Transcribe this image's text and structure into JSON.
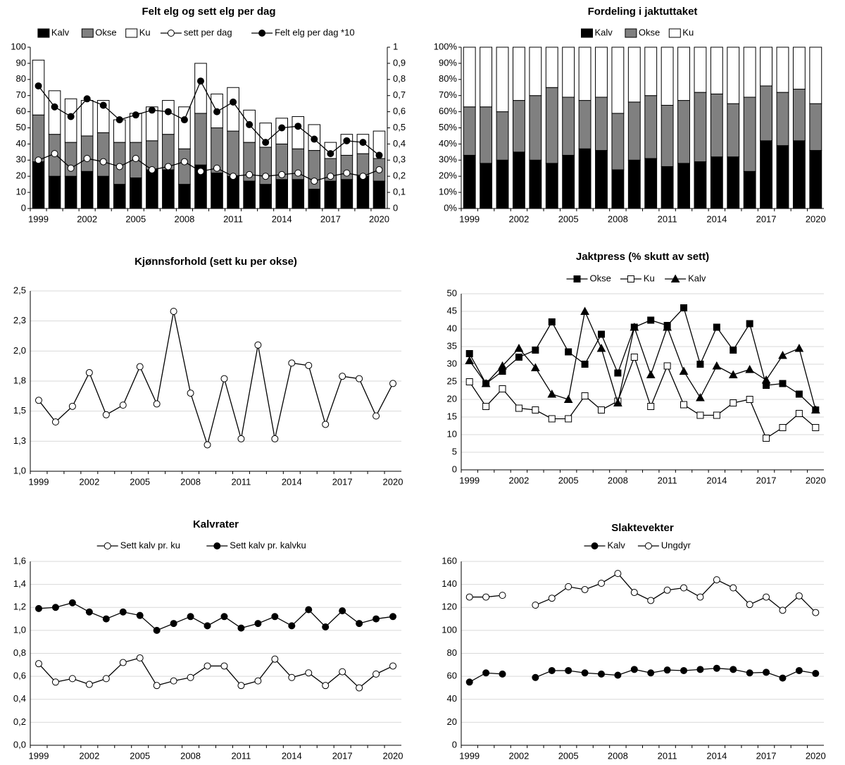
{
  "chart_data": [
    {
      "type": "bar",
      "title": "Felt elg og sett elg per dag",
      "stacked": true,
      "grid": false,
      "categories": [
        1999,
        null,
        null,
        2002,
        null,
        null,
        2005,
        null,
        null,
        2008,
        null,
        null,
        2011,
        null,
        null,
        2014,
        null,
        null,
        2017,
        null,
        null,
        2020
      ],
      "ylim": [
        0,
        100
      ],
      "yticks": [
        0,
        10,
        20,
        30,
        40,
        50,
        60,
        70,
        80,
        90,
        100
      ],
      "y2lim": [
        0,
        1
      ],
      "y2ticks": [
        0,
        {
          "value": 0.1,
          "label": "0,1"
        },
        {
          "value": 0.2,
          "label": "0,2"
        },
        {
          "value": 0.3,
          "label": "0,3"
        },
        {
          "value": 0.4,
          "label": "0,4"
        },
        {
          "value": 0.5,
          "label": "0,5"
        },
        {
          "value": 0.6,
          "label": "0,6"
        },
        {
          "value": 0.7,
          "label": "0,7"
        },
        {
          "value": 0.8,
          "label": "0,8"
        },
        {
          "value": 0.9,
          "label": "0,9"
        },
        1
      ],
      "series": [
        {
          "name": "Kalv",
          "color": "#000000",
          "values": [
            29,
            20,
            20,
            23,
            20,
            15,
            19,
            24,
            24,
            15,
            27,
            22,
            20,
            17,
            15,
            18,
            18,
            12,
            17,
            18,
            20,
            17
          ]
        },
        {
          "name": "Okse",
          "color": "#808080",
          "values": [
            29,
            26,
            21,
            22,
            27,
            26,
            22,
            18,
            22,
            22,
            32,
            28,
            28,
            24,
            23,
            22,
            19,
            24,
            14,
            15,
            14,
            14
          ]
        },
        {
          "name": "Ku",
          "color": "#ffffff",
          "values": [
            34,
            27,
            27,
            22,
            20,
            14,
            18,
            21,
            21,
            26,
            31,
            21,
            27,
            20,
            15,
            16,
            20,
            16,
            10,
            13,
            12,
            17
          ]
        },
        {
          "name": "sett per dag",
          "type": "line",
          "axis": "y2",
          "marker": "circle",
          "color": "#000000",
          "fill": "#ffffff",
          "values": [
            0.3,
            0.34,
            0.25,
            0.31,
            0.29,
            0.26,
            0.31,
            0.24,
            0.26,
            0.29,
            0.23,
            0.25,
            0.2,
            0.21,
            0.2,
            0.21,
            0.22,
            0.17,
            0.2,
            0.22,
            0.2,
            0.24
          ]
        },
        {
          "name": "Felt elg per dag *10",
          "type": "line",
          "axis": "y2",
          "marker": "circle",
          "color": "#000000",
          "fill": "#000000",
          "values": [
            0.76,
            0.63,
            0.57,
            0.68,
            0.64,
            0.55,
            0.58,
            0.61,
            0.6,
            0.55,
            0.79,
            0.6,
            0.66,
            0.52,
            0.41,
            0.5,
            0.51,
            0.43,
            0.34,
            0.42,
            0.41,
            0.33
          ]
        }
      ]
    },
    {
      "type": "bar",
      "title": "Fordeling i jaktuttaket",
      "stacked": true,
      "grid": false,
      "categories": [
        1999,
        null,
        null,
        2002,
        null,
        null,
        2005,
        null,
        null,
        2008,
        null,
        null,
        2011,
        null,
        null,
        2014,
        null,
        null,
        2017,
        null,
        null,
        2020
      ],
      "ylim": [
        0,
        100
      ],
      "yticks": [
        {
          "value": 0,
          "label": "0%"
        },
        {
          "value": 10,
          "label": "10%"
        },
        {
          "value": 20,
          "label": "20%"
        },
        {
          "value": 30,
          "label": "30%"
        },
        {
          "value": 40,
          "label": "40%"
        },
        {
          "value": 50,
          "label": "50%"
        },
        {
          "value": 60,
          "label": "60%"
        },
        {
          "value": 70,
          "label": "70%"
        },
        {
          "value": 80,
          "label": "80%"
        },
        {
          "value": 90,
          "label": "90%"
        },
        {
          "value": 100,
          "label": "100%"
        }
      ],
      "series": [
        {
          "name": "Kalv",
          "color": "#000000",
          "values": [
            33,
            28,
            30,
            35,
            30,
            28,
            33,
            37,
            36,
            24,
            30,
            31,
            26,
            28,
            29,
            32,
            32,
            23,
            42,
            39,
            42,
            36
          ]
        },
        {
          "name": "Okse",
          "color": "#808080",
          "values": [
            30,
            35,
            30,
            32,
            40,
            47,
            36,
            30,
            33,
            35,
            36,
            39,
            38,
            39,
            43,
            39,
            33,
            46,
            34,
            33,
            32,
            29
          ]
        },
        {
          "name": "Ku",
          "color": "#ffffff",
          "values": [
            37,
            37,
            40,
            33,
            30,
            25,
            31,
            33,
            31,
            41,
            34,
            30,
            36,
            33,
            28,
            29,
            35,
            31,
            24,
            28,
            26,
            35
          ]
        }
      ]
    },
    {
      "type": "line",
      "title": "Kjønnsforhold (sett ku per okse)",
      "grid": true,
      "categories": [
        1999,
        null,
        null,
        2002,
        null,
        null,
        2005,
        null,
        null,
        2008,
        null,
        null,
        2011,
        null,
        null,
        2014,
        null,
        null,
        2017,
        null,
        null,
        2020
      ],
      "ylim": [
        1,
        2.5
      ],
      "yticks": [
        {
          "value": 1,
          "label": "1,0"
        },
        {
          "value": 1.25,
          "label": "1,3"
        },
        {
          "value": 1.5,
          "label": "1,5"
        },
        {
          "value": 1.75,
          "label": "1,8"
        },
        {
          "value": 2,
          "label": "2,0"
        },
        {
          "value": 2.25,
          "label": "2,3"
        },
        {
          "value": 2.5,
          "label": "2,5"
        }
      ],
      "series": [
        {
          "marker": "circle",
          "color": "#000000",
          "fill": "#ffffff",
          "values": [
            1.59,
            1.41,
            1.54,
            1.82,
            1.47,
            1.55,
            1.87,
            1.56,
            2.33,
            1.65,
            1.22,
            1.77,
            1.27,
            2.05,
            1.27,
            1.9,
            1.88,
            1.39,
            1.79,
            1.77,
            1.46,
            1.73
          ]
        }
      ]
    },
    {
      "type": "line",
      "title": "Jaktpress (% skutt av sett)",
      "grid": true,
      "categories": [
        1999,
        null,
        null,
        2002,
        null,
        null,
        2005,
        null,
        null,
        2008,
        null,
        null,
        2011,
        null,
        null,
        2014,
        null,
        null,
        2017,
        null,
        null,
        2020
      ],
      "ylim": [
        0,
        50
      ],
      "yticks": [
        0,
        5,
        10,
        15,
        20,
        25,
        30,
        35,
        40,
        45,
        50
      ],
      "series": [
        {
          "name": "Okse",
          "marker": "square",
          "color": "#000000",
          "fill": "#000000",
          "values": [
            33,
            24.5,
            28,
            32,
            34,
            42,
            33.5,
            30,
            38.5,
            27.5,
            40.5,
            42.5,
            41,
            46,
            30,
            40.5,
            34,
            41.5,
            24,
            24.5,
            21.5,
            17
          ]
        },
        {
          "name": "Ku",
          "marker": "square",
          "color": "#000000",
          "fill": "#ffffff",
          "values": [
            25,
            18,
            23,
            17.5,
            17,
            14.5,
            14.5,
            21,
            17,
            19.5,
            32,
            18,
            29.5,
            18.5,
            15.5,
            15.5,
            19,
            20,
            9,
            12,
            16,
            12
          ]
        },
        {
          "name": "Kalv",
          "marker": "triangle",
          "color": "#000000",
          "fill": "#000000",
          "values": [
            31,
            24.5,
            29.5,
            34.5,
            29,
            21.5,
            20,
            45,
            34.5,
            19,
            40.5,
            27,
            40.5,
            28,
            20.5,
            29.5,
            27,
            28.5,
            25.5,
            32.5,
            34.5,
            17
          ]
        }
      ]
    },
    {
      "type": "line",
      "title": "Kalvrater",
      "grid": true,
      "categories": [
        1999,
        null,
        null,
        2002,
        null,
        null,
        2005,
        null,
        null,
        2008,
        null,
        null,
        2011,
        null,
        null,
        2014,
        null,
        null,
        2017,
        null,
        null,
        2020
      ],
      "ylim": [
        0,
        1.6
      ],
      "yticks": [
        {
          "value": 0,
          "label": "0,0"
        },
        {
          "value": 0.2,
          "label": "0,2"
        },
        {
          "value": 0.4,
          "label": "0,4"
        },
        {
          "value": 0.6,
          "label": "0,6"
        },
        {
          "value": 0.8,
          "label": "0,8"
        },
        {
          "value": 1,
          "label": "1,0"
        },
        {
          "value": 1.2,
          "label": "1,2"
        },
        {
          "value": 1.4,
          "label": "1,4"
        },
        {
          "value": 1.6,
          "label": "1,6"
        }
      ],
      "series": [
        {
          "name": "Sett kalv pr. ku",
          "marker": "circle",
          "color": "#000000",
          "fill": "#ffffff",
          "values": [
            0.71,
            0.55,
            0.58,
            0.53,
            0.58,
            0.72,
            0.76,
            0.52,
            0.56,
            0.59,
            0.69,
            0.69,
            0.52,
            0.56,
            0.75,
            0.59,
            0.63,
            0.52,
            0.64,
            0.5,
            0.62,
            0.69
          ]
        },
        {
          "name": "Sett kalv pr. kalvku",
          "marker": "circle",
          "color": "#000000",
          "fill": "#000000",
          "values": [
            1.19,
            1.2,
            1.24,
            1.16,
            1.1,
            1.16,
            1.13,
            1.0,
            1.06,
            1.12,
            1.04,
            1.12,
            1.02,
            1.06,
            1.12,
            1.04,
            1.18,
            1.03,
            1.17,
            1.06,
            1.1,
            1.12
          ]
        }
      ]
    },
    {
      "type": "line",
      "title": "Slaktevekter",
      "grid": true,
      "categories": [
        1999,
        null,
        null,
        2002,
        null,
        null,
        2005,
        null,
        null,
        2008,
        null,
        null,
        2011,
        null,
        null,
        2014,
        null,
        null,
        2017,
        null,
        null,
        2020
      ],
      "ylim": [
        0,
        160
      ],
      "yticks": [
        0,
        20,
        40,
        60,
        80,
        100,
        120,
        140,
        160
      ],
      "series": [
        {
          "name": "Kalv",
          "marker": "circle",
          "color": "#000000",
          "fill": "#000000",
          "values": [
            55,
            63,
            62,
            null,
            59,
            65,
            65,
            63,
            62,
            61,
            66,
            63,
            65.5,
            65,
            66,
            67,
            66,
            63,
            63.5,
            58.5,
            65,
            62.5
          ]
        },
        {
          "name": "Ungdyr",
          "marker": "circle",
          "color": "#000000",
          "fill": "#ffffff",
          "values": [
            129,
            129,
            130.5,
            null,
            122,
            128,
            138,
            135.5,
            141,
            149.5,
            133,
            126,
            135,
            137,
            129,
            144,
            137,
            122.5,
            129,
            117.5,
            130,
            115.5
          ]
        }
      ]
    }
  ]
}
